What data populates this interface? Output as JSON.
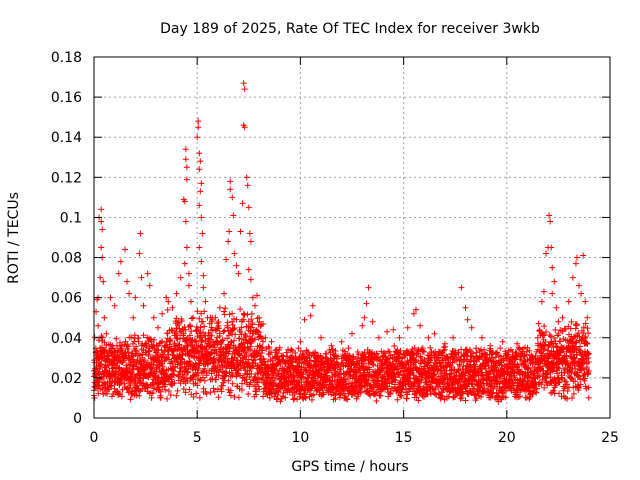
{
  "chart_data": {
    "type": "scatter",
    "title": "Day 189 of 2025, Rate Of TEC Index for receiver 3wkb",
    "xlabel": "GPS time / hours",
    "ylabel": "ROTI / TECUs",
    "xlim": [
      0,
      25
    ],
    "ylim": [
      0,
      0.18
    ],
    "x_ticks": [
      0,
      5,
      10,
      15,
      20,
      25
    ],
    "x_tick_labels": [
      "0",
      "5",
      "10",
      "15",
      "20",
      "25"
    ],
    "y_ticks": [
      0,
      0.02,
      0.04,
      0.06,
      0.08,
      0.1,
      0.12,
      0.14,
      0.16,
      0.18
    ],
    "y_tick_labels": [
      "0",
      "0.02",
      "0.04",
      "0.06",
      "0.08",
      "0.1",
      "0.12",
      "0.14",
      "0.16",
      "0.18"
    ],
    "grid": true,
    "marker": "+",
    "marker_color": "#ff0000",
    "series": [
      {
        "name": "ROTI",
        "points": [
          [
            0.1,
            0.053
          ],
          [
            0.15,
            0.059
          ],
          [
            0.2,
            0.06
          ],
          [
            0.25,
            0.1
          ],
          [
            0.35,
            0.104
          ],
          [
            0.35,
            0.098
          ],
          [
            0.4,
            0.094
          ],
          [
            0.35,
            0.085
          ],
          [
            0.4,
            0.08
          ],
          [
            0.3,
            0.07
          ],
          [
            0.45,
            0.068
          ],
          [
            0.2,
            0.046
          ],
          [
            0.5,
            0.05
          ],
          [
            0.6,
            0.042
          ],
          [
            0.8,
            0.06
          ],
          [
            1.0,
            0.056
          ],
          [
            1.2,
            0.072
          ],
          [
            1.3,
            0.078
          ],
          [
            1.5,
            0.084
          ],
          [
            1.6,
            0.068
          ],
          [
            1.7,
            0.062
          ],
          [
            1.9,
            0.05
          ],
          [
            2.0,
            0.06
          ],
          [
            2.2,
            0.082
          ],
          [
            2.25,
            0.092
          ],
          [
            2.3,
            0.07
          ],
          [
            2.4,
            0.056
          ],
          [
            2.6,
            0.072
          ],
          [
            2.7,
            0.066
          ],
          [
            2.9,
            0.05
          ],
          [
            3.1,
            0.045
          ],
          [
            3.3,
            0.052
          ],
          [
            3.5,
            0.06
          ],
          [
            3.6,
            0.058
          ],
          [
            3.8,
            0.055
          ],
          [
            4.0,
            0.062
          ],
          [
            4.2,
            0.07
          ],
          [
            4.35,
            0.109
          ],
          [
            4.4,
            0.108
          ],
          [
            4.45,
            0.134
          ],
          [
            4.45,
            0.129
          ],
          [
            4.5,
            0.125
          ],
          [
            4.5,
            0.119
          ],
          [
            4.45,
            0.098
          ],
          [
            4.5,
            0.085
          ],
          [
            4.4,
            0.077
          ],
          [
            4.6,
            0.072
          ],
          [
            4.6,
            0.066
          ],
          [
            4.7,
            0.058
          ],
          [
            4.8,
            0.05
          ],
          [
            5.0,
            0.14
          ],
          [
            5.05,
            0.148
          ],
          [
            5.05,
            0.145
          ],
          [
            5.1,
            0.132
          ],
          [
            5.15,
            0.128
          ],
          [
            5.1,
            0.124
          ],
          [
            5.2,
            0.117
          ],
          [
            5.15,
            0.113
          ],
          [
            5.1,
            0.106
          ],
          [
            5.2,
            0.1
          ],
          [
            5.25,
            0.092
          ],
          [
            5.1,
            0.085
          ],
          [
            5.2,
            0.078
          ],
          [
            5.3,
            0.071
          ],
          [
            5.3,
            0.065
          ],
          [
            5.4,
            0.058
          ],
          [
            5.5,
            0.05
          ],
          [
            5.7,
            0.048
          ],
          [
            5.9,
            0.044
          ],
          [
            6.1,
            0.055
          ],
          [
            6.3,
            0.062
          ],
          [
            6.4,
            0.079
          ],
          [
            6.5,
            0.088
          ],
          [
            6.55,
            0.093
          ],
          [
            6.6,
            0.118
          ],
          [
            6.6,
            0.114
          ],
          [
            6.7,
            0.11
          ],
          [
            6.75,
            0.101
          ],
          [
            6.8,
            0.082
          ],
          [
            6.9,
            0.076
          ],
          [
            7.0,
            0.072
          ],
          [
            7.1,
            0.093
          ],
          [
            7.2,
            0.107
          ],
          [
            7.25,
            0.146
          ],
          [
            7.25,
            0.167
          ],
          [
            7.3,
            0.164
          ],
          [
            7.3,
            0.145
          ],
          [
            7.4,
            0.12
          ],
          [
            7.45,
            0.116
          ],
          [
            7.5,
            0.105
          ],
          [
            7.55,
            0.092
          ],
          [
            7.6,
            0.088
          ],
          [
            7.5,
            0.074
          ],
          [
            7.6,
            0.069
          ],
          [
            7.7,
            0.06
          ],
          [
            7.8,
            0.056
          ],
          [
            7.9,
            0.061
          ],
          [
            8.0,
            0.05
          ],
          [
            8.3,
            0.04
          ],
          [
            8.6,
            0.038
          ],
          [
            9.0,
            0.035
          ],
          [
            9.4,
            0.034
          ],
          [
            10.0,
            0.038
          ],
          [
            10.2,
            0.049
          ],
          [
            10.5,
            0.051
          ],
          [
            10.6,
            0.056
          ],
          [
            11.0,
            0.04
          ],
          [
            11.5,
            0.036
          ],
          [
            12.0,
            0.038
          ],
          [
            12.5,
            0.042
          ],
          [
            13.0,
            0.046
          ],
          [
            13.1,
            0.05
          ],
          [
            13.2,
            0.057
          ],
          [
            13.3,
            0.065
          ],
          [
            13.5,
            0.048
          ],
          [
            13.8,
            0.04
          ],
          [
            14.2,
            0.043
          ],
          [
            14.5,
            0.044
          ],
          [
            14.8,
            0.04
          ],
          [
            15.2,
            0.045
          ],
          [
            15.5,
            0.052
          ],
          [
            15.6,
            0.054
          ],
          [
            15.8,
            0.046
          ],
          [
            16.2,
            0.04
          ],
          [
            16.5,
            0.042
          ],
          [
            17.0,
            0.037
          ],
          [
            17.4,
            0.04
          ],
          [
            17.8,
            0.065
          ],
          [
            18.0,
            0.055
          ],
          [
            18.1,
            0.049
          ],
          [
            18.3,
            0.045
          ],
          [
            18.8,
            0.04
          ],
          [
            19.2,
            0.036
          ],
          [
            19.8,
            0.038
          ],
          [
            20.2,
            0.034
          ],
          [
            20.5,
            0.037
          ],
          [
            21.0,
            0.035
          ],
          [
            21.5,
            0.04
          ],
          [
            21.7,
            0.058
          ],
          [
            21.8,
            0.063
          ],
          [
            21.9,
            0.082
          ],
          [
            22.0,
            0.085
          ],
          [
            22.05,
            0.101
          ],
          [
            22.1,
            0.098
          ],
          [
            22.15,
            0.085
          ],
          [
            22.2,
            0.075
          ],
          [
            22.3,
            0.068
          ],
          [
            22.2,
            0.062
          ],
          [
            22.4,
            0.055
          ],
          [
            22.5,
            0.048
          ],
          [
            22.7,
            0.05
          ],
          [
            23.0,
            0.058
          ],
          [
            23.2,
            0.07
          ],
          [
            23.35,
            0.077
          ],
          [
            23.4,
            0.08
          ],
          [
            23.5,
            0.066
          ],
          [
            23.6,
            0.062
          ],
          [
            23.7,
            0.081
          ],
          [
            23.8,
            0.058
          ],
          [
            23.9,
            0.05
          ]
        ]
      }
    ],
    "dense_band": {
      "description_note": "continuous band of points every ~0.03 h from 0 to 24 h",
      "x_range": [
        0.0,
        24.0
      ],
      "x_step": 0.03
    }
  }
}
